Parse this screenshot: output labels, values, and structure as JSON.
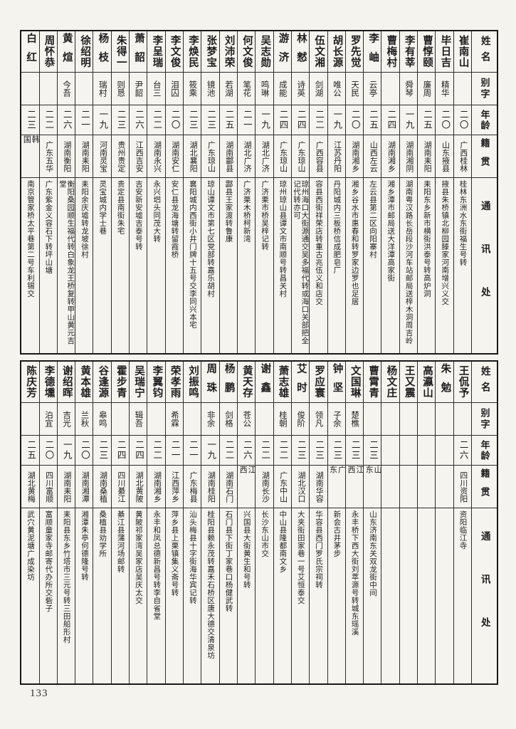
{
  "page": {
    "number": "133"
  },
  "colors": {
    "paper": "#f6f4ef",
    "ink": "#1d1d1d",
    "grid": "#2c2c2c"
  },
  "row_headers": [
    "姓名",
    "别字",
    "年龄",
    "籍贯",
    "通讯处"
  ],
  "tables": [
    {
      "people": [
        {
          "name": "崔南山",
          "zi": "",
          "age": "二〇",
          "origin": "广西桂林",
          "address": "桂林东洲水东街福生号转"
        },
        {
          "name": "毕日吉",
          "zi": "精华",
          "age": "二〇",
          "origin": "山东掖县",
          "address": "掖县朱桥镇北柳园滕家河南增兴义交"
        },
        {
          "name": "曹惇颐",
          "zi": "廉周",
          "age": "二五",
          "origin": "湖南耒阳",
          "address": "耒阳东乡新市横街洪泰号转高炉洞"
        },
        {
          "name": "李有莘",
          "zi": "舜琴",
          "age": "一九",
          "origin": "湖南湘阴",
          "address": "湖南粤汉路长岳段沙河车站邮局送梓木洞周吉岭"
        },
        {
          "name": "曹梅村",
          "zi": "",
          "age": "二四",
          "origin": "湖南湘乡",
          "address": "湘乡潭市邮局送大洋潭高家街"
        },
        {
          "name": "李岫",
          "zi": "云亭",
          "age": "二五",
          "origin": "山西左云",
          "address": "左云县第二区向阳寨村"
        },
        {
          "name": "罗先觉",
          "zi": "天民",
          "age": "二〇",
          "origin": "湖南湘乡",
          "address": "湘乡谷水市惠春和转罗家边罗也足居"
        },
        {
          "name": "胡长源",
          "zi": "唯公",
          "age": "一九",
          "origin": "江苏丹阳",
          "address": "丹阳城内三板桥信成肥皂厂"
        },
        {
          "name": "伍文湘",
          "zi": "剑湖",
          "age": "二二",
          "origin": "广西容县",
          "address": "容县西街祥荣店转重古兆伍义和店交"
        },
        {
          "name": "林憖",
          "zi": "诗英",
          "age": "二四",
          "origin": "广东琼山",
          "address": "琼州海口大街源通交吴多福代转或海口关部把全记代转亦可"
        },
        {
          "name": "游济",
          "zi": "成能",
          "age": "二四",
          "origin": "广东琼山",
          "address": "琼州琼山县谭文市南顺号转昌关村"
        },
        {
          "name": "吴志勋",
          "zi": "鸣琳",
          "age": "一九",
          "origin": "湖北广济",
          "address": "广济栗市桥吴梓记转"
        },
        {
          "name": "何文俊",
          "zi": "笔花",
          "age": "二一",
          "origin": "湖北广济",
          "address": "广济栗木桥柯新湾"
        },
        {
          "name": "刘沛荣",
          "zi": "若湖",
          "age": "二五",
          "origin": "湖南酃县",
          "address": "酃县王家渡转鲁康"
        },
        {
          "name": "张梦宝",
          "zi": "镜池",
          "age": "二三",
          "origin": "广东琼山",
          "address": "琼山谭文市第七区党部转嘉乐胡村"
        },
        {
          "name": "李焕民",
          "zi": "筱乘",
          "age": "二三",
          "origin": "湖北襄阳",
          "address": "襄阳城内西街小井门牌十五号交李同兴本宅"
        },
        {
          "name": "李文俊",
          "zi": "泪囚",
          "age": "二〇",
          "origin": "湖南安仁",
          "address": "安仁县龙海塘转留霞桥"
        },
        {
          "name": "李呈瑞",
          "zi": "台三",
          "age": "二二",
          "origin": "湖南永兴",
          "address": "永兴垇头同茂大转"
        },
        {
          "name": "萧韶",
          "zi": "尹韶",
          "age": "二六",
          "origin": "江西吉安",
          "address": "吉安新安墟吉泰号转"
        },
        {
          "name": "朱得一",
          "zi": "则恳",
          "age": "二三",
          "origin": "贵州贵定",
          "address": "贵定县南街朱宅"
        },
        {
          "name": "杨枝",
          "zi": "瑞村",
          "age": "一九",
          "origin": "河南灵宝",
          "address": "灵宝城内学士巷"
        },
        {
          "name": "徐绍明",
          "zi": "",
          "age": "二一",
          "origin": "湖南耒阳",
          "address": "耒阳余庆墟转龙坡徐村"
        },
        {
          "name": "黄煊",
          "zi": "今吾",
          "age": "二六",
          "origin": "湖南衡阳",
          "address": "衡阳桑园顺生福代转白象龙王桥复转甲山黄元吉堂"
        },
        {
          "name": "周怀恭",
          "zi": "",
          "age": "二二",
          "origin": "广东五华",
          "address": "广东紫金义容石下转坪山塘"
        },
        {
          "name": "白红",
          "zi": "",
          "age": "二三",
          "origin": "韩国",
          "address": "南京管家桥太平巷第二号车利锡交"
        }
      ]
    },
    {
      "people": [
        {
          "name": "王侃予",
          "zi": "",
          "age": "二六",
          "origin": "四川资阳",
          "address": "资阳临江寺"
        },
        {
          "name": "朱勉",
          "zi": "",
          "age": "",
          "origin": "",
          "address": ""
        },
        {
          "name": "高瀛山",
          "zi": "",
          "age": "",
          "origin": "",
          "address": ""
        },
        {
          "name": "王又震",
          "zi": "",
          "age": "",
          "origin": "",
          "address": ""
        },
        {
          "name": "杨文庄",
          "zi": "",
          "age": "",
          "origin": "",
          "address": ""
        },
        {
          "name": "曹霄青",
          "zi": "",
          "age": "二三",
          "origin": "山东",
          "address": "山东济南东关双龙街中间"
        },
        {
          "name": "文国琳",
          "zi": "楚樵",
          "age": "二三",
          "origin": "江西",
          "address": "永丰桥下西大街刘萃源号转城东瑶溪"
        },
        {
          "name": "钟坚",
          "zi": "子余",
          "age": "二三",
          "origin": "广东",
          "address": "新会古井茅步"
        },
        {
          "name": "罗应寰",
          "zi": "领凡",
          "age": "二三",
          "origin": "湖南华容",
          "address": "华容县西门罗氏宗祠转"
        },
        {
          "name": "艾时",
          "zi": "俊阶",
          "age": "二三",
          "origin": "湖北汉口",
          "address": "大夹街田家巷一号艾恒泰交"
        },
        {
          "name": "萧志雄",
          "zi": "桂朝",
          "age": "二二",
          "origin": "广东中山",
          "address": "中山县隆都南文乡"
        },
        {
          "name": "谢鑫",
          "zi": "",
          "age": "二二",
          "origin": "湖南长沙",
          "address": "长沙东山市交"
        },
        {
          "name": "黄天存",
          "zi": "苍公",
          "age": "二六",
          "origin": "江西",
          "address": "兴国县大街黄生和号转"
        },
        {
          "name": "杨鹏",
          "zi": "剑格",
          "age": "二二",
          "origin": "湖南石门",
          "address": "石门县下街丁家巷口杨健武转"
        },
        {
          "name": "周珠",
          "zi": "非余",
          "age": "一九",
          "origin": "湖南桂阳",
          "address": "桂阳县赖永茂转嘉禾石桥区唐大德交清泉坊"
        },
        {
          "name": "刘振鸣",
          "zi": "",
          "age": "二一",
          "origin": "广东梅县",
          "address": "汕头梅县十字街海华宾记转"
        },
        {
          "name": "荣孝雨",
          "zi": "希霖",
          "age": "二一",
          "origin": "江西萍乡",
          "address": "萍乡县上栗镇集义斋号转"
        },
        {
          "name": "李翼钧",
          "zi": "",
          "age": "二二",
          "origin": "湖南湘乡",
          "address": "永丰和凤总德新昌号转李自省堂"
        },
        {
          "name": "吴瑞宁",
          "zi": "辑吾",
          "age": "二四",
          "origin": "湖北黄陂",
          "address": "黄陂祁家湾吴家店吴庆太交"
        },
        {
          "name": "霍步青",
          "zi": "",
          "age": "二四",
          "origin": "四川綦江",
          "address": "綦江县蒲河场邮转"
        },
        {
          "name": "谷逢源",
          "zi": "皋鸣",
          "age": "二三",
          "origin": "湖南桑植",
          "address": "桑植县劝学所"
        },
        {
          "name": "黄本雄",
          "zi": "兰秋",
          "age": "二〇",
          "origin": "湖南湘潭",
          "address": "湘潭朱亭何德隆号转"
        },
        {
          "name": "谢绍晖",
          "zi": "吉光",
          "age": "一九",
          "origin": "湖南耒阳",
          "address": "耒阳县东乡竹塔市三元号转三田船形村"
        },
        {
          "name": "李德壎",
          "zi": "泊宜",
          "age": "二〇",
          "origin": "四川富顺",
          "address": "富顺童家寺邮寄代办所交砦子"
        },
        {
          "name": "陈庆芳",
          "zi": "",
          "age": "二五",
          "origin": "湖北黄梅",
          "address": "武穴黄泥塘广成染坊"
        }
      ]
    }
  ]
}
